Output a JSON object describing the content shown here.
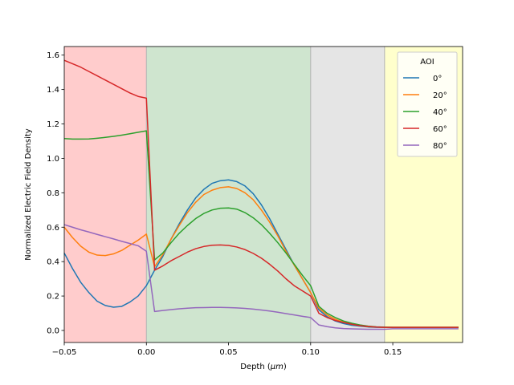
{
  "chart_data": {
    "type": "line",
    "title": "",
    "xlabel_prefix": "Depth (",
    "xlabel_unit": "μm",
    "xlabel_suffix": ")",
    "ylabel": "Normalized Electric Field Density",
    "xlim": [
      -0.05,
      0.1925
    ],
    "ylim": [
      -0.07,
      1.65
    ],
    "grid": false,
    "xticks": [
      -0.05,
      0.0,
      0.05,
      0.1,
      0.15
    ],
    "xtick_labels": [
      "−0.05",
      "0.00",
      "0.05",
      "0.10",
      "0.15"
    ],
    "yticks": [
      0.0,
      0.2,
      0.4,
      0.6,
      0.8,
      1.0,
      1.2,
      1.4,
      1.6
    ],
    "ytick_labels": [
      "0.0",
      "0.2",
      "0.4",
      "0.6",
      "0.8",
      "1.0",
      "1.2",
      "1.4",
      "1.6"
    ],
    "regions": [
      {
        "x0": -0.05,
        "x1": 0.0,
        "color": "#ffcccc"
      },
      {
        "x0": 0.0,
        "x1": 0.1,
        "color": "#cfe5cf"
      },
      {
        "x0": 0.1,
        "x1": 0.145,
        "color": "#e5e5e5"
      },
      {
        "x0": 0.145,
        "x1": 0.1925,
        "color": "#ffffcc"
      }
    ],
    "region_boundary_color": "#b3b3b3",
    "legend": {
      "title": "AOI",
      "position": "top-right"
    },
    "series": [
      {
        "name": "0°",
        "color": "#1f77b4",
        "x": [
          -0.05,
          -0.045,
          -0.04,
          -0.035,
          -0.03,
          -0.025,
          -0.02,
          -0.015,
          -0.01,
          -0.005,
          0.0,
          0.005,
          0.01,
          0.015,
          0.02,
          0.025,
          0.03,
          0.035,
          0.04,
          0.045,
          0.05,
          0.055,
          0.06,
          0.065,
          0.07,
          0.075,
          0.08,
          0.085,
          0.09,
          0.095,
          0.1,
          0.105,
          0.11,
          0.115,
          0.12,
          0.125,
          0.13,
          0.135,
          0.14,
          0.145,
          0.15,
          0.16,
          0.17,
          0.18,
          0.19
        ],
        "y": [
          0.45,
          0.36,
          0.28,
          0.22,
          0.17,
          0.145,
          0.135,
          0.14,
          0.165,
          0.2,
          0.26,
          0.35,
          0.43,
          0.53,
          0.62,
          0.7,
          0.77,
          0.82,
          0.855,
          0.87,
          0.875,
          0.865,
          0.84,
          0.795,
          0.73,
          0.65,
          0.56,
          0.47,
          0.38,
          0.3,
          0.22,
          0.12,
          0.08,
          0.055,
          0.04,
          0.03,
          0.025,
          0.02,
          0.018,
          0.018,
          0.018,
          0.018,
          0.018,
          0.018,
          0.018
        ]
      },
      {
        "name": "20°",
        "color": "#ff7f0e",
        "x": [
          -0.05,
          -0.045,
          -0.04,
          -0.035,
          -0.03,
          -0.025,
          -0.02,
          -0.015,
          -0.01,
          -0.005,
          0.0,
          0.005,
          0.01,
          0.015,
          0.02,
          0.025,
          0.03,
          0.035,
          0.04,
          0.045,
          0.05,
          0.055,
          0.06,
          0.065,
          0.07,
          0.075,
          0.08,
          0.085,
          0.09,
          0.095,
          0.1,
          0.105,
          0.11,
          0.115,
          0.12,
          0.125,
          0.13,
          0.135,
          0.14,
          0.145,
          0.15,
          0.16,
          0.17,
          0.18,
          0.19
        ],
        "y": [
          0.6,
          0.54,
          0.49,
          0.455,
          0.438,
          0.435,
          0.445,
          0.465,
          0.495,
          0.525,
          0.56,
          0.37,
          0.44,
          0.53,
          0.61,
          0.685,
          0.745,
          0.79,
          0.815,
          0.83,
          0.835,
          0.825,
          0.8,
          0.76,
          0.7,
          0.63,
          0.55,
          0.46,
          0.38,
          0.3,
          0.22,
          0.13,
          0.09,
          0.065,
          0.048,
          0.036,
          0.028,
          0.022,
          0.02,
          0.018,
          0.018,
          0.018,
          0.018,
          0.018,
          0.018
        ]
      },
      {
        "name": "40°",
        "color": "#2ca02c",
        "x": [
          -0.05,
          -0.045,
          -0.04,
          -0.035,
          -0.03,
          -0.025,
          -0.02,
          -0.015,
          -0.01,
          -0.005,
          0.0,
          0.005,
          0.01,
          0.015,
          0.02,
          0.025,
          0.03,
          0.035,
          0.04,
          0.045,
          0.05,
          0.055,
          0.06,
          0.065,
          0.07,
          0.075,
          0.08,
          0.085,
          0.09,
          0.095,
          0.1,
          0.105,
          0.11,
          0.115,
          0.12,
          0.125,
          0.13,
          0.135,
          0.14,
          0.145,
          0.15,
          0.16,
          0.17,
          0.18,
          0.19
        ],
        "y": [
          1.115,
          1.112,
          1.112,
          1.113,
          1.117,
          1.122,
          1.128,
          1.135,
          1.143,
          1.152,
          1.16,
          0.41,
          0.45,
          0.51,
          0.565,
          0.61,
          0.65,
          0.68,
          0.7,
          0.71,
          0.712,
          0.705,
          0.685,
          0.655,
          0.615,
          0.565,
          0.51,
          0.45,
          0.385,
          0.32,
          0.26,
          0.14,
          0.1,
          0.075,
          0.055,
          0.042,
          0.032,
          0.025,
          0.021,
          0.019,
          0.018,
          0.018,
          0.018,
          0.018,
          0.018
        ]
      },
      {
        "name": "60°",
        "color": "#d62728",
        "x": [
          -0.05,
          -0.045,
          -0.04,
          -0.035,
          -0.03,
          -0.025,
          -0.02,
          -0.015,
          -0.01,
          -0.005,
          0.0,
          0.005,
          0.01,
          0.015,
          0.02,
          0.025,
          0.03,
          0.035,
          0.04,
          0.045,
          0.05,
          0.055,
          0.06,
          0.065,
          0.07,
          0.075,
          0.08,
          0.085,
          0.09,
          0.095,
          0.1,
          0.105,
          0.11,
          0.115,
          0.12,
          0.125,
          0.13,
          0.135,
          0.14,
          0.145,
          0.15,
          0.16,
          0.17,
          0.18,
          0.19
        ],
        "y": [
          1.57,
          1.55,
          1.53,
          1.505,
          1.48,
          1.455,
          1.43,
          1.405,
          1.38,
          1.36,
          1.35,
          0.35,
          0.375,
          0.405,
          0.43,
          0.455,
          0.475,
          0.488,
          0.495,
          0.497,
          0.494,
          0.485,
          0.47,
          0.448,
          0.42,
          0.385,
          0.345,
          0.3,
          0.26,
          0.23,
          0.2,
          0.1,
          0.075,
          0.058,
          0.046,
          0.036,
          0.028,
          0.023,
          0.02,
          0.018,
          0.018,
          0.018,
          0.018,
          0.018,
          0.018
        ]
      },
      {
        "name": "80°",
        "color": "#9467bd",
        "x": [
          -0.05,
          -0.045,
          -0.04,
          -0.035,
          -0.03,
          -0.025,
          -0.02,
          -0.015,
          -0.01,
          -0.005,
          0.0,
          0.005,
          0.01,
          0.015,
          0.02,
          0.025,
          0.03,
          0.035,
          0.04,
          0.045,
          0.05,
          0.055,
          0.06,
          0.065,
          0.07,
          0.075,
          0.08,
          0.085,
          0.09,
          0.095,
          0.1,
          0.105,
          0.11,
          0.115,
          0.12,
          0.125,
          0.13,
          0.135,
          0.14,
          0.145,
          0.15,
          0.16,
          0.17,
          0.18,
          0.19
        ],
        "y": [
          0.615,
          0.6,
          0.585,
          0.572,
          0.558,
          0.545,
          0.532,
          0.518,
          0.505,
          0.492,
          0.46,
          0.11,
          0.116,
          0.121,
          0.126,
          0.129,
          0.132,
          0.133,
          0.134,
          0.134,
          0.133,
          0.131,
          0.128,
          0.124,
          0.119,
          0.113,
          0.106,
          0.098,
          0.09,
          0.082,
          0.075,
          0.032,
          0.022,
          0.015,
          0.011,
          0.009,
          0.008,
          0.007,
          0.007,
          0.007,
          0.01,
          0.01,
          0.01,
          0.01,
          0.01
        ]
      }
    ]
  }
}
